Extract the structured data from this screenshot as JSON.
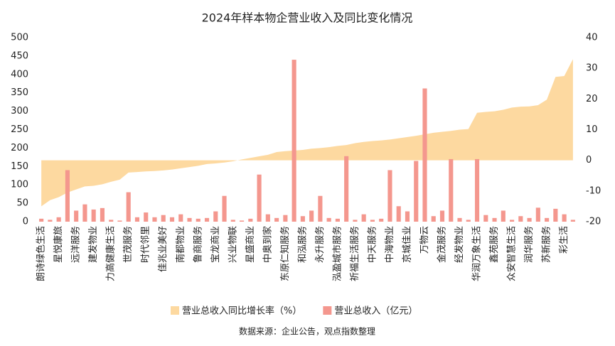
{
  "chart_data": {
    "type": "combo",
    "title": "2024年样本物企营业收入及同比变化情况",
    "source": "数据来源：企业公告，观点指数整理",
    "categories": [
      "朗诗绿色生活",
      null,
      "星悦康旅",
      null,
      "远洋服务",
      null,
      "建发物业",
      null,
      "力高健康生活",
      null,
      "世茂服务",
      null,
      "时代邻里",
      null,
      "佳兆业美好",
      null,
      "南都物业",
      null,
      "鲁商服务",
      null,
      "宝龙商业",
      null,
      "兴业物联",
      null,
      "星盛商业",
      null,
      "中奥到家",
      null,
      "东原仁知服务",
      null,
      "和泓服务",
      null,
      "永升服务",
      null,
      "泓盈城市服务",
      null,
      "祈福生活服务",
      null,
      "中天服务",
      null,
      "中海物业",
      null,
      "京城佳业",
      null,
      "万物云",
      null,
      "金茂服务",
      null,
      "经发物业",
      null,
      "华润万象生活",
      null,
      "鑫苑服务",
      null,
      "众安智慧生活",
      null,
      "润华服务",
      null,
      "苏新服务",
      null,
      "彩生活",
      null
    ],
    "series": [
      {
        "name": "营业总收入同比增长率（%）",
        "type": "area",
        "axis": "y2",
        "color": "#fdd9a0",
        "values": [
          -15,
          -13,
          -12,
          -10.5,
          -9.5,
          -8.5,
          -8.3,
          -7.8,
          -7,
          -6.3,
          -4,
          -3.8,
          -3.6,
          -3.5,
          -3.3,
          -3,
          -2.6,
          -2.2,
          -1.8,
          -1.2,
          -1,
          -0.7,
          -0.3,
          0.3,
          0.8,
          1.3,
          1.8,
          2.7,
          3,
          3.2,
          3.4,
          3.8,
          4,
          4.3,
          4.7,
          5,
          5.6,
          6,
          6.3,
          6.5,
          6.8,
          7.2,
          7.6,
          8,
          8.5,
          9,
          9.3,
          9.6,
          10,
          10.2,
          15.5,
          15.8,
          16,
          16.5,
          17.2,
          17.5,
          17.6,
          18,
          19.8,
          27.2,
          27.5,
          33
        ]
      },
      {
        "name": "营业总收入（亿元）",
        "type": "bar",
        "color": "#f4978e",
        "values": [
          8,
          5,
          12,
          140,
          30,
          47,
          33,
          37,
          5,
          3,
          80,
          12,
          25,
          12,
          18,
          12,
          20,
          10,
          8,
          10,
          28,
          70,
          5,
          3,
          8,
          128,
          20,
          10,
          18,
          440,
          15,
          30,
          70,
          10,
          8,
          178,
          5,
          20,
          5,
          8,
          140,
          42,
          28,
          165,
          362,
          15,
          30,
          170,
          10,
          5,
          170,
          18,
          10,
          30,
          5,
          15,
          10,
          38,
          10,
          35,
          20,
          5
        ]
      }
    ],
    "ylim": [
      0,
      500
    ],
    "yticks": [
      0,
      50,
      100,
      150,
      200,
      250,
      300,
      350,
      400,
      450,
      500
    ],
    "y2lim": [
      -20,
      40
    ],
    "y2ticks": [
      -20,
      -10,
      0,
      10,
      20,
      30,
      40
    ],
    "legend": "bottom"
  }
}
